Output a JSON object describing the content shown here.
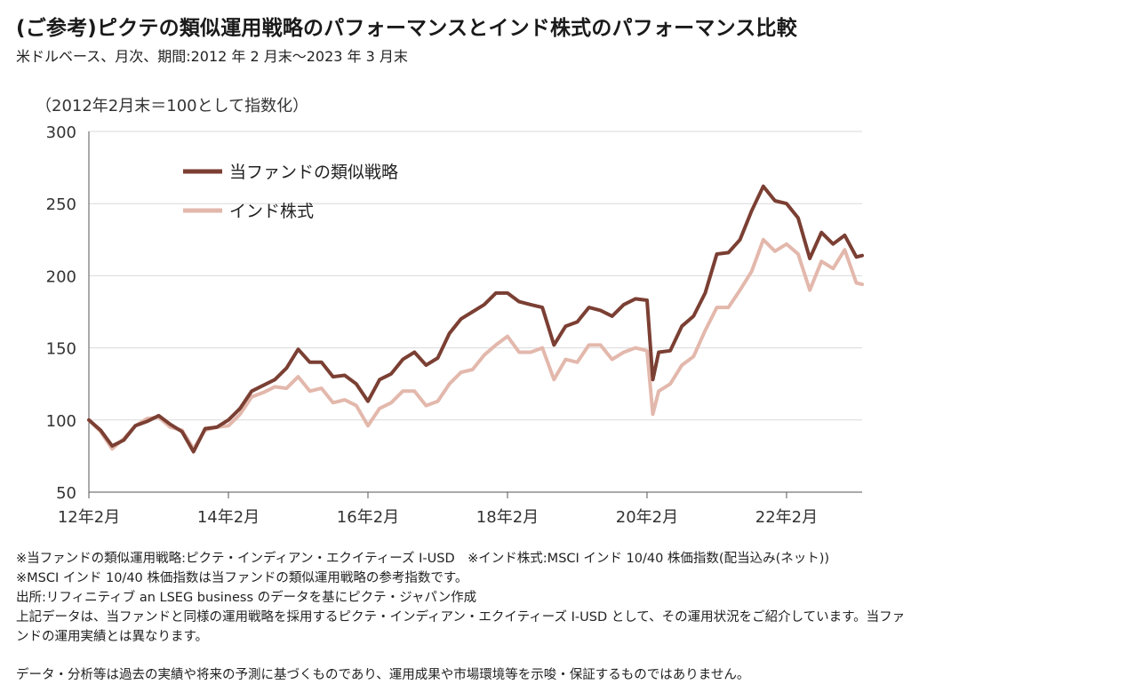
{
  "header": {
    "title": "(ご参考)ピクテの類似運用戦略のパフォーマンスとインド株式のパフォーマンス比較",
    "subtitle": "米ドルベース、月次、期間:2012 年 2 月末〜2023 年 3 月末"
  },
  "chart_data": {
    "type": "line",
    "unit_label": "（2012年2月末＝100として指数化）",
    "ylim": [
      50,
      300
    ],
    "yticks": [
      300,
      250,
      200,
      150,
      100,
      50
    ],
    "xlim": [
      "2012-02",
      "2023-03"
    ],
    "xticks": [
      {
        "label": "12年2月",
        "date": "2012-02"
      },
      {
        "label": "14年2月",
        "date": "2014-02"
      },
      {
        "label": "16年2月",
        "date": "2016-02"
      },
      {
        "label": "18年2月",
        "date": "2018-02"
      },
      {
        "label": "20年2月",
        "date": "2020-02"
      },
      {
        "label": "22年2月",
        "date": "2022-02"
      }
    ],
    "grid": true,
    "legend_position": "top-left",
    "series": [
      {
        "name": "当ファンドの類似戦略",
        "color": "#7b3f33",
        "points": [
          [
            "2012-02",
            100
          ],
          [
            "2012-04",
            93
          ],
          [
            "2012-06",
            82
          ],
          [
            "2012-08",
            86
          ],
          [
            "2012-10",
            96
          ],
          [
            "2012-12",
            99
          ],
          [
            "2013-02",
            103
          ],
          [
            "2013-04",
            97
          ],
          [
            "2013-06",
            92
          ],
          [
            "2013-08",
            78
          ],
          [
            "2013-10",
            94
          ],
          [
            "2013-12",
            95
          ],
          [
            "2014-02",
            100
          ],
          [
            "2014-04",
            108
          ],
          [
            "2014-06",
            120
          ],
          [
            "2014-08",
            124
          ],
          [
            "2014-10",
            128
          ],
          [
            "2014-12",
            136
          ],
          [
            "2015-02",
            149
          ],
          [
            "2015-04",
            140
          ],
          [
            "2015-06",
            140
          ],
          [
            "2015-08",
            130
          ],
          [
            "2015-10",
            131
          ],
          [
            "2015-12",
            125
          ],
          [
            "2016-02",
            113
          ],
          [
            "2016-04",
            128
          ],
          [
            "2016-06",
            132
          ],
          [
            "2016-08",
            142
          ],
          [
            "2016-10",
            147
          ],
          [
            "2016-12",
            138
          ],
          [
            "2017-02",
            143
          ],
          [
            "2017-04",
            160
          ],
          [
            "2017-06",
            170
          ],
          [
            "2017-08",
            175
          ],
          [
            "2017-10",
            180
          ],
          [
            "2017-12",
            188
          ],
          [
            "2018-02",
            188
          ],
          [
            "2018-04",
            182
          ],
          [
            "2018-06",
            180
          ],
          [
            "2018-08",
            178
          ],
          [
            "2018-10",
            152
          ],
          [
            "2018-12",
            165
          ],
          [
            "2019-02",
            168
          ],
          [
            "2019-04",
            178
          ],
          [
            "2019-06",
            176
          ],
          [
            "2019-08",
            172
          ],
          [
            "2019-10",
            180
          ],
          [
            "2019-12",
            184
          ],
          [
            "2020-02",
            183
          ],
          [
            "2020-03",
            128
          ],
          [
            "2020-04",
            147
          ],
          [
            "2020-06",
            148
          ],
          [
            "2020-08",
            165
          ],
          [
            "2020-10",
            172
          ],
          [
            "2020-12",
            188
          ],
          [
            "2021-02",
            215
          ],
          [
            "2021-04",
            216
          ],
          [
            "2021-06",
            225
          ],
          [
            "2021-08",
            245
          ],
          [
            "2021-10",
            262
          ],
          [
            "2021-12",
            252
          ],
          [
            "2022-02",
            250
          ],
          [
            "2022-04",
            240
          ],
          [
            "2022-06",
            212
          ],
          [
            "2022-08",
            230
          ],
          [
            "2022-10",
            222
          ],
          [
            "2022-12",
            228
          ],
          [
            "2023-02",
            213
          ],
          [
            "2023-03",
            214
          ]
        ]
      },
      {
        "name": "インド株式",
        "color": "#e3b8ac",
        "points": [
          [
            "2012-02",
            100
          ],
          [
            "2012-04",
            92
          ],
          [
            "2012-06",
            80
          ],
          [
            "2012-08",
            87
          ],
          [
            "2012-10",
            96
          ],
          [
            "2012-12",
            101
          ],
          [
            "2013-02",
            102
          ],
          [
            "2013-04",
            95
          ],
          [
            "2013-06",
            93
          ],
          [
            "2013-08",
            80
          ],
          [
            "2013-10",
            93
          ],
          [
            "2013-12",
            95
          ],
          [
            "2014-02",
            96
          ],
          [
            "2014-04",
            104
          ],
          [
            "2014-06",
            116
          ],
          [
            "2014-08",
            119
          ],
          [
            "2014-10",
            123
          ],
          [
            "2014-12",
            122
          ],
          [
            "2015-02",
            130
          ],
          [
            "2015-04",
            120
          ],
          [
            "2015-06",
            122
          ],
          [
            "2015-08",
            112
          ],
          [
            "2015-10",
            114
          ],
          [
            "2015-12",
            110
          ],
          [
            "2016-02",
            96
          ],
          [
            "2016-04",
            108
          ],
          [
            "2016-06",
            112
          ],
          [
            "2016-08",
            120
          ],
          [
            "2016-10",
            120
          ],
          [
            "2016-12",
            110
          ],
          [
            "2017-02",
            113
          ],
          [
            "2017-04",
            125
          ],
          [
            "2017-06",
            133
          ],
          [
            "2017-08",
            135
          ],
          [
            "2017-10",
            145
          ],
          [
            "2017-12",
            152
          ],
          [
            "2018-02",
            158
          ],
          [
            "2018-04",
            147
          ],
          [
            "2018-06",
            147
          ],
          [
            "2018-08",
            150
          ],
          [
            "2018-10",
            128
          ],
          [
            "2018-12",
            142
          ],
          [
            "2019-02",
            140
          ],
          [
            "2019-04",
            152
          ],
          [
            "2019-06",
            152
          ],
          [
            "2019-08",
            142
          ],
          [
            "2019-10",
            147
          ],
          [
            "2019-12",
            150
          ],
          [
            "2020-02",
            148
          ],
          [
            "2020-03",
            104
          ],
          [
            "2020-04",
            120
          ],
          [
            "2020-06",
            125
          ],
          [
            "2020-08",
            138
          ],
          [
            "2020-10",
            144
          ],
          [
            "2020-12",
            162
          ],
          [
            "2021-02",
            178
          ],
          [
            "2021-04",
            178
          ],
          [
            "2021-06",
            190
          ],
          [
            "2021-08",
            203
          ],
          [
            "2021-10",
            225
          ],
          [
            "2021-12",
            217
          ],
          [
            "2022-02",
            222
          ],
          [
            "2022-04",
            215
          ],
          [
            "2022-06",
            190
          ],
          [
            "2022-08",
            210
          ],
          [
            "2022-10",
            205
          ],
          [
            "2022-12",
            218
          ],
          [
            "2023-02",
            195
          ],
          [
            "2023-03",
            194
          ]
        ]
      }
    ]
  },
  "notes": [
    "※当ファンドの類似運用戦略:ピクテ・インディアン・エクイティーズ I-USD　※インド株式:MSCI インド 10/40 株価指数(配当込み(ネット))",
    "※MSCI インド 10/40 株価指数は当ファンドの類似運用戦略の参考指数です。",
    "出所:リフィニティブ an LSEG business のデータを基にピクテ・ジャパン作成",
    "上記データは、当ファンドと同様の運用戦略を採用するピクテ・インディアン・エクイティーズ I-USD として、その運用状況をご紹介しています。当ファ",
    "ンドの運用実績とは異なります。"
  ],
  "disclaimer": "データ・分析等は過去の実績や将来の予測に基づくものであり、運用成果や市場環境等を示唆・保証するものではありません。"
}
